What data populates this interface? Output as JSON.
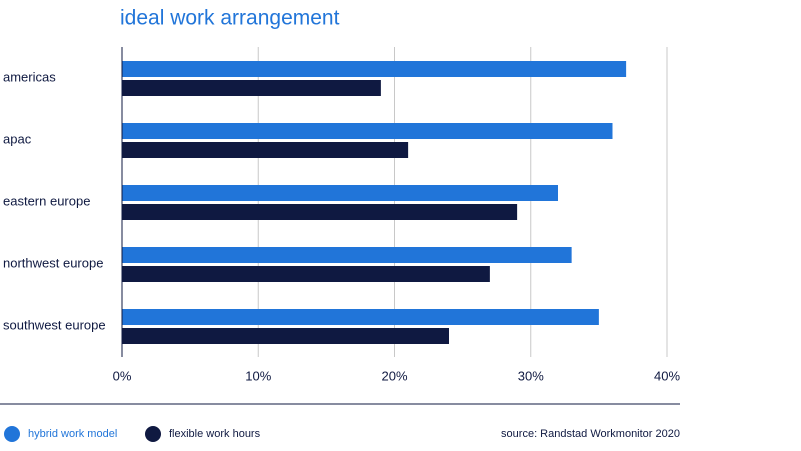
{
  "chart_data": {
    "type": "bar",
    "orientation": "horizontal",
    "title": "ideal work arrangement",
    "categories": [
      "americas",
      "apac",
      "eastern europe",
      "northwest europe",
      "southwest europe"
    ],
    "series": [
      {
        "name": "hybrid work model",
        "color": "#2175d9",
        "values": [
          37,
          36,
          32,
          33,
          35
        ]
      },
      {
        "name": "flexible work hours",
        "color": "#0f1941",
        "values": [
          19,
          21,
          29,
          27,
          24
        ]
      }
    ],
    "xlim": [
      0,
      40
    ],
    "xticks": [
      {
        "value": 0,
        "label": "0%"
      },
      {
        "value": 10,
        "label": "10%"
      },
      {
        "value": 20,
        "label": "20%"
      },
      {
        "value": 30,
        "label": "30%"
      },
      {
        "value": 40,
        "label": "40%"
      }
    ],
    "grid": true,
    "source": "source: Randstad Workmonitor 2020"
  }
}
